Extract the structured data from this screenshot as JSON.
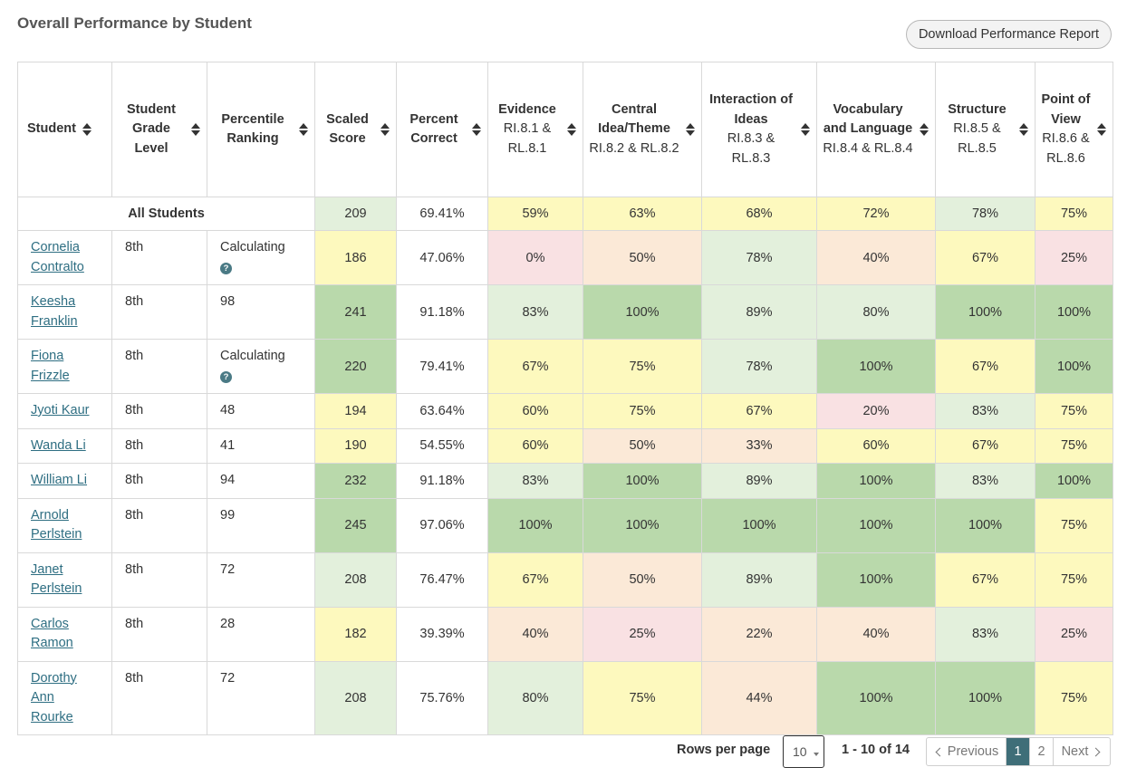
{
  "title": "Overall Performance by Student",
  "download_label": "Download Performance Report",
  "colors": {
    "g": "#b9d9ab",
    "lg": "#e3f0dc",
    "y": "#fdf9be",
    "o": "#fbe9d7",
    "r": "#f9e1e3",
    "link": "#2e6e82",
    "active_page": "#3f6e78"
  },
  "columns": [
    {
      "label": "Student",
      "sub": ""
    },
    {
      "label": "Student Grade Level",
      "sub": ""
    },
    {
      "label": "Percentile Ranking",
      "sub": ""
    },
    {
      "label": "Scaled Score",
      "sub": ""
    },
    {
      "label": "Percent Correct",
      "sub": ""
    },
    {
      "label": "Evidence",
      "sub": "RI.8.1 & RL.8.1"
    },
    {
      "label": "Central Idea/Theme",
      "sub": "RI.8.2 & RL.8.2"
    },
    {
      "label": "Interaction of Ideas",
      "sub": "RI.8.3 & RL.8.3"
    },
    {
      "label": "Vocabulary and Language",
      "sub": "RI.8.4 & RL.8.4"
    },
    {
      "label": "Structure",
      "sub": "RI.8.5 & RL.8.5"
    },
    {
      "label": "Point of View",
      "sub": "RI.8.6 & RL.8.6"
    }
  ],
  "all_students": {
    "label": "All Students",
    "scaled": "209",
    "scaled_color": "lg",
    "percent": "69.41%",
    "skills": [
      {
        "v": "59%",
        "c": "y"
      },
      {
        "v": "63%",
        "c": "y"
      },
      {
        "v": "68%",
        "c": "y"
      },
      {
        "v": "72%",
        "c": "y"
      },
      {
        "v": "78%",
        "c": "lg"
      },
      {
        "v": "75%",
        "c": "y"
      }
    ]
  },
  "rows": [
    {
      "name": "Cornelia Contralto",
      "grade": "8th",
      "percentile": "Calculating",
      "help": true,
      "scaled": "186",
      "scaled_color": "y",
      "percent": "47.06%",
      "skills": [
        {
          "v": "0%",
          "c": "r"
        },
        {
          "v": "50%",
          "c": "o"
        },
        {
          "v": "78%",
          "c": "lg"
        },
        {
          "v": "40%",
          "c": "o"
        },
        {
          "v": "67%",
          "c": "y"
        },
        {
          "v": "25%",
          "c": "r"
        }
      ]
    },
    {
      "name": "Keesha Franklin",
      "grade": "8th",
      "percentile": "98",
      "help": false,
      "scaled": "241",
      "scaled_color": "g",
      "percent": "91.18%",
      "skills": [
        {
          "v": "83%",
          "c": "lg"
        },
        {
          "v": "100%",
          "c": "g"
        },
        {
          "v": "89%",
          "c": "lg"
        },
        {
          "v": "80%",
          "c": "lg"
        },
        {
          "v": "100%",
          "c": "g"
        },
        {
          "v": "100%",
          "c": "g"
        }
      ]
    },
    {
      "name": "Fiona Frizzle",
      "grade": "8th",
      "percentile": "Calculating",
      "help": true,
      "scaled": "220",
      "scaled_color": "g",
      "percent": "79.41%",
      "skills": [
        {
          "v": "67%",
          "c": "y"
        },
        {
          "v": "75%",
          "c": "y"
        },
        {
          "v": "78%",
          "c": "lg"
        },
        {
          "v": "100%",
          "c": "g"
        },
        {
          "v": "67%",
          "c": "y"
        },
        {
          "v": "100%",
          "c": "g"
        }
      ]
    },
    {
      "name": "Jyoti Kaur",
      "grade": "8th",
      "percentile": "48",
      "help": false,
      "scaled": "194",
      "scaled_color": "y",
      "percent": "63.64%",
      "skills": [
        {
          "v": "60%",
          "c": "y"
        },
        {
          "v": "75%",
          "c": "y"
        },
        {
          "v": "67%",
          "c": "y"
        },
        {
          "v": "20%",
          "c": "r"
        },
        {
          "v": "83%",
          "c": "lg"
        },
        {
          "v": "75%",
          "c": "y"
        }
      ]
    },
    {
      "name": "Wanda Li",
      "grade": "8th",
      "percentile": "41",
      "help": false,
      "scaled": "190",
      "scaled_color": "y",
      "percent": "54.55%",
      "skills": [
        {
          "v": "60%",
          "c": "y"
        },
        {
          "v": "50%",
          "c": "o"
        },
        {
          "v": "33%",
          "c": "o"
        },
        {
          "v": "60%",
          "c": "y"
        },
        {
          "v": "67%",
          "c": "y"
        },
        {
          "v": "75%",
          "c": "y"
        }
      ]
    },
    {
      "name": "William Li",
      "grade": "8th",
      "percentile": "94",
      "help": false,
      "scaled": "232",
      "scaled_color": "g",
      "percent": "91.18%",
      "skills": [
        {
          "v": "83%",
          "c": "lg"
        },
        {
          "v": "100%",
          "c": "g"
        },
        {
          "v": "89%",
          "c": "lg"
        },
        {
          "v": "100%",
          "c": "g"
        },
        {
          "v": "83%",
          "c": "lg"
        },
        {
          "v": "100%",
          "c": "g"
        }
      ]
    },
    {
      "name": "Arnold Perlstein",
      "grade": "8th",
      "percentile": "99",
      "help": false,
      "scaled": "245",
      "scaled_color": "g",
      "percent": "97.06%",
      "skills": [
        {
          "v": "100%",
          "c": "g"
        },
        {
          "v": "100%",
          "c": "g"
        },
        {
          "v": "100%",
          "c": "g"
        },
        {
          "v": "100%",
          "c": "g"
        },
        {
          "v": "100%",
          "c": "g"
        },
        {
          "v": "75%",
          "c": "y"
        }
      ]
    },
    {
      "name": "Janet Perlstein",
      "grade": "8th",
      "percentile": "72",
      "help": false,
      "scaled": "208",
      "scaled_color": "lg",
      "percent": "76.47%",
      "skills": [
        {
          "v": "67%",
          "c": "y"
        },
        {
          "v": "50%",
          "c": "o"
        },
        {
          "v": "89%",
          "c": "lg"
        },
        {
          "v": "100%",
          "c": "g"
        },
        {
          "v": "67%",
          "c": "y"
        },
        {
          "v": "75%",
          "c": "y"
        }
      ]
    },
    {
      "name": "Carlos Ramon",
      "grade": "8th",
      "percentile": "28",
      "help": false,
      "scaled": "182",
      "scaled_color": "y",
      "percent": "39.39%",
      "skills": [
        {
          "v": "40%",
          "c": "o"
        },
        {
          "v": "25%",
          "c": "r"
        },
        {
          "v": "22%",
          "c": "o"
        },
        {
          "v": "40%",
          "c": "o"
        },
        {
          "v": "83%",
          "c": "lg"
        },
        {
          "v": "25%",
          "c": "r"
        }
      ]
    },
    {
      "name": "Dorothy Ann Rourke",
      "grade": "8th",
      "percentile": "72",
      "help": false,
      "scaled": "208",
      "scaled_color": "lg",
      "percent": "75.76%",
      "skills": [
        {
          "v": "80%",
          "c": "lg"
        },
        {
          "v": "75%",
          "c": "y"
        },
        {
          "v": "44%",
          "c": "o"
        },
        {
          "v": "100%",
          "c": "g"
        },
        {
          "v": "100%",
          "c": "g"
        },
        {
          "v": "75%",
          "c": "y"
        }
      ]
    }
  ],
  "pagination": {
    "rows_per_page_label": "Rows per page",
    "rows_per_page_value": "10",
    "range_text": "1 - 10 of 14",
    "prev_label": "Previous",
    "pages": [
      "1",
      "2"
    ],
    "current_page": "1",
    "next_label": "Next"
  }
}
